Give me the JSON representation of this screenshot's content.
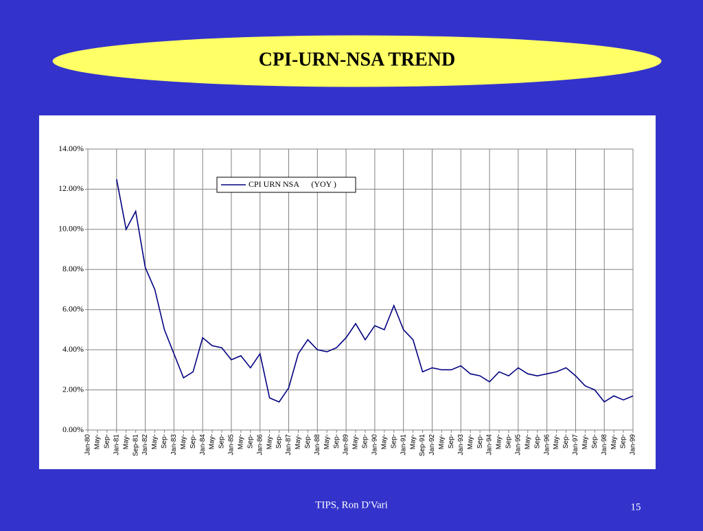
{
  "slide_title": "CPI-URN-NSA TREND",
  "footer": {
    "source": "TIPS, Ron D'Vari",
    "page": "15"
  },
  "chart_data": {
    "type": "line",
    "categories": [
      "Jan-80",
      "May-",
      "Sep-",
      "Jan-81",
      "May-",
      "Sep-81",
      "Jan-82",
      "May-",
      "Sep-",
      "Jan-83",
      "May-",
      "Sep-",
      "Jan-84",
      "May-",
      "Sep-",
      "Jan-85",
      "May-",
      "Sep-",
      "Jan-86",
      "May-",
      "Sep-",
      "Jan-87",
      "May-",
      "Sep-",
      "Jan-88",
      "May-",
      "Sep-",
      "Jan-89",
      "May-",
      "Sep-",
      "Jan-90",
      "May-",
      "Sep-",
      "Jan-91",
      "May-",
      "Sep-91",
      "Jan-92",
      "May-",
      "Sep-",
      "Jan-93",
      "May-",
      "Sep-",
      "Jan-94",
      "May-",
      "Sep-",
      "Jan-95",
      "May-",
      "Sep-",
      "Jan-96",
      "May-",
      "Sep-",
      "Jan-97",
      "May-",
      "Sep-",
      "Jan-98",
      "May-",
      "Sep-",
      "Jan-99"
    ],
    "series": [
      {
        "name": "CPI URN NSA      (YOY )",
        "color": "#000080",
        "values": [
          null,
          null,
          null,
          12.5,
          10.0,
          10.9,
          8.1,
          7.0,
          5.0,
          3.8,
          2.6,
          2.9,
          4.6,
          4.2,
          4.1,
          3.5,
          3.7,
          3.1,
          3.8,
          1.6,
          1.4,
          2.1,
          3.8,
          4.5,
          4.0,
          3.9,
          4.1,
          4.6,
          5.3,
          4.5,
          5.2,
          5.0,
          6.2,
          5.0,
          4.5,
          2.9,
          3.1,
          3.0,
          3.0,
          3.2,
          2.8,
          2.7,
          2.4,
          2.9,
          2.7,
          3.1,
          2.8,
          2.7,
          2.8,
          2.9,
          3.1,
          2.7,
          2.2,
          2.0,
          1.4,
          1.7,
          1.5,
          1.7
        ]
      }
    ],
    "ylim": [
      0,
      14
    ],
    "yticks": [
      {
        "value": 0,
        "label": "0.00%"
      },
      {
        "value": 2,
        "label": "2.00%"
      },
      {
        "value": 4,
        "label": "4.00%"
      },
      {
        "value": 6,
        "label": "6.00%"
      },
      {
        "value": 8,
        "label": "8.00%"
      },
      {
        "value": 10,
        "label": "10.00%"
      },
      {
        "value": 12,
        "label": "12.00%"
      },
      {
        "value": 14,
        "label": "14.00%"
      }
    ],
    "grid": true
  }
}
